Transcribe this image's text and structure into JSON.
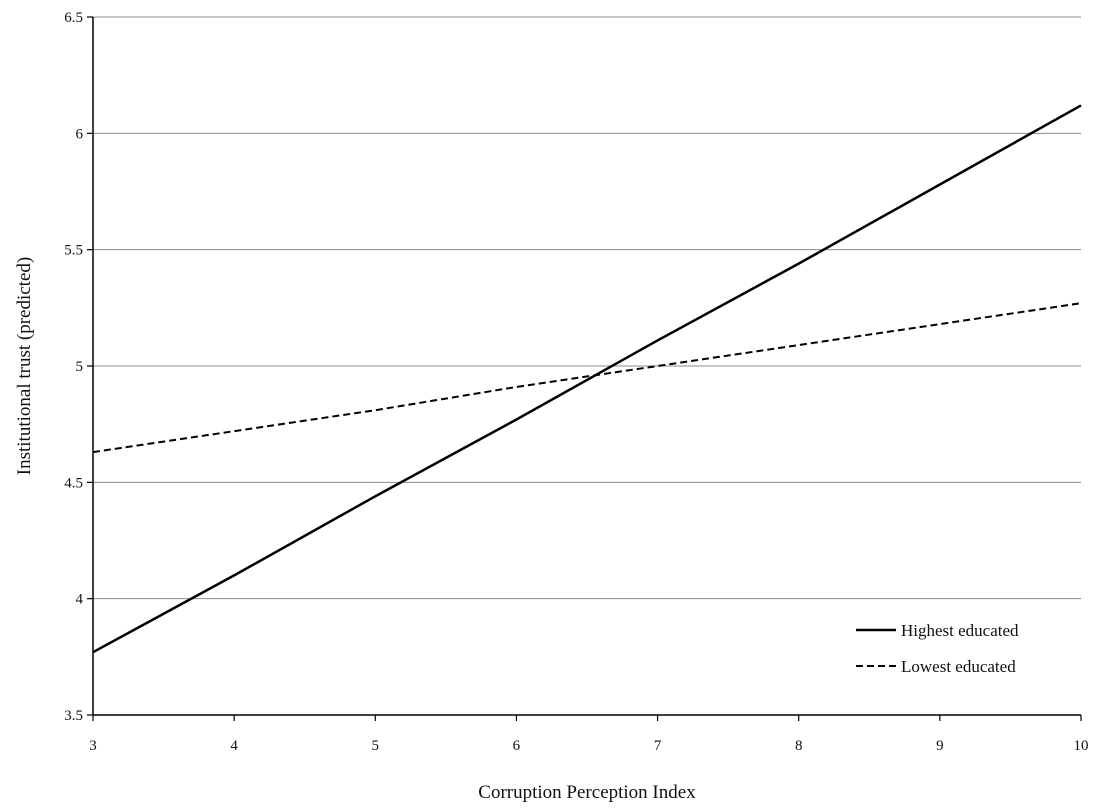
{
  "chart_data": {
    "type": "line",
    "title": "",
    "xlabel": "Corruption Perception Index",
    "ylabel": "Institutional trust (predicted)",
    "xlim": [
      3,
      10
    ],
    "ylim": [
      3.5,
      6.5
    ],
    "x_ticks": [
      "3",
      "4",
      "5",
      "6",
      "7",
      "8",
      "9",
      "10"
    ],
    "y_ticks": [
      "3.5",
      "4",
      "4.5",
      "5",
      "5.5",
      "6",
      "6.5"
    ],
    "grid": "horizontal",
    "legend_position": "bottom-right",
    "series": [
      {
        "name": "Highest educated",
        "style": "solid",
        "color": "#000000",
        "x": [
          3,
          4,
          5,
          6,
          7,
          8,
          9,
          10
        ],
        "y": [
          3.77,
          4.1,
          4.44,
          4.77,
          5.11,
          5.44,
          5.78,
          6.12
        ]
      },
      {
        "name": "Lowest educated",
        "style": "dashed",
        "color": "#000000",
        "x": [
          3,
          4,
          5,
          6,
          7,
          8,
          9,
          10
        ],
        "y": [
          4.63,
          4.72,
          4.81,
          4.91,
          5.0,
          5.09,
          5.18,
          5.27
        ]
      }
    ]
  }
}
